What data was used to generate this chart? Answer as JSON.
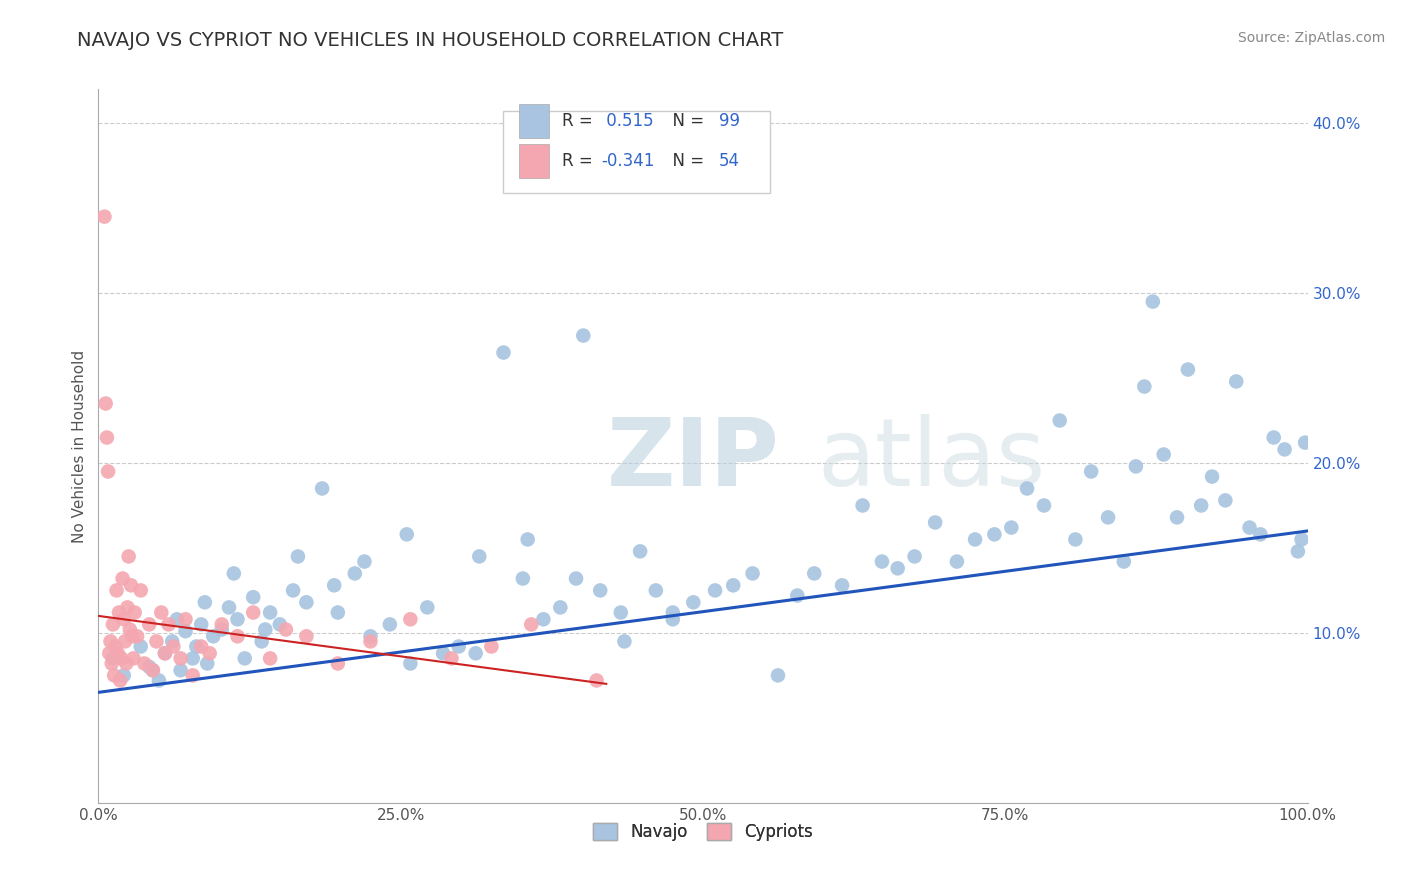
{
  "title": "NAVAJO VS CYPRIOT NO VEHICLES IN HOUSEHOLD CORRELATION CHART",
  "source_text": "Source: ZipAtlas.com",
  "ylabel": "No Vehicles in Household",
  "xlim": [
    0,
    100
  ],
  "ylim": [
    0,
    42
  ],
  "xticks": [
    0,
    25,
    50,
    75,
    100
  ],
  "xtick_labels": [
    "0.0%",
    "25.0%",
    "50.0%",
    "75.0%",
    "100.0%"
  ],
  "yticks": [
    0,
    10,
    20,
    30,
    40
  ],
  "ytick_labels": [
    "",
    "10.0%",
    "20.0%",
    "30.0%",
    "40.0%"
  ],
  "navajo_R": 0.515,
  "navajo_N": 99,
  "cypriot_R": -0.341,
  "cypriot_N": 54,
  "navajo_color": "#a8c4e0",
  "cypriot_color": "#f4a7b0",
  "navajo_line_color": "#2255bb",
  "cypriot_line_color": "#cc2222",
  "watermark_zip": "ZIP",
  "watermark_atlas": "atlas",
  "background_color": "#ffffff",
  "grid_color": "#cccccc",
  "navajo_x": [
    1.2,
    2.1,
    3.5,
    4.2,
    5.0,
    5.5,
    6.1,
    6.8,
    7.2,
    7.8,
    8.1,
    8.5,
    9.0,
    9.5,
    10.2,
    10.8,
    11.5,
    12.1,
    12.8,
    13.5,
    14.2,
    15.0,
    16.1,
    17.2,
    18.5,
    19.8,
    21.2,
    22.5,
    24.1,
    25.8,
    27.2,
    28.5,
    29.8,
    31.2,
    33.5,
    35.1,
    36.8,
    38.2,
    40.1,
    41.5,
    43.2,
    44.8,
    46.1,
    47.5,
    49.2,
    51.0,
    52.5,
    54.1,
    56.2,
    57.8,
    59.2,
    61.5,
    63.2,
    64.8,
    66.1,
    67.5,
    69.2,
    71.0,
    72.5,
    74.1,
    75.5,
    76.8,
    78.2,
    79.5,
    80.8,
    82.1,
    83.5,
    84.8,
    85.8,
    86.5,
    87.2,
    88.1,
    89.2,
    90.1,
    91.2,
    92.1,
    93.2,
    94.1,
    95.2,
    96.1,
    97.2,
    98.1,
    99.2,
    99.5,
    99.8,
    4.5,
    6.5,
    8.8,
    11.2,
    13.8,
    16.5,
    19.5,
    22.0,
    25.5,
    31.5,
    35.5,
    39.5,
    43.5,
    47.5
  ],
  "navajo_y": [
    8.5,
    7.5,
    9.2,
    8.0,
    7.2,
    8.8,
    9.5,
    7.8,
    10.1,
    8.5,
    9.2,
    10.5,
    8.2,
    9.8,
    10.2,
    11.5,
    10.8,
    8.5,
    12.1,
    9.5,
    11.2,
    10.5,
    12.5,
    11.8,
    18.5,
    11.2,
    13.5,
    9.8,
    10.5,
    8.2,
    11.5,
    8.8,
    9.2,
    8.8,
    26.5,
    13.2,
    10.8,
    11.5,
    27.5,
    12.5,
    11.2,
    14.8,
    12.5,
    11.2,
    11.8,
    12.5,
    12.8,
    13.5,
    7.5,
    12.2,
    13.5,
    12.8,
    17.5,
    14.2,
    13.8,
    14.5,
    16.5,
    14.2,
    15.5,
    15.8,
    16.2,
    18.5,
    17.5,
    22.5,
    15.5,
    19.5,
    16.8,
    14.2,
    19.8,
    24.5,
    29.5,
    20.5,
    16.8,
    25.5,
    17.5,
    19.2,
    17.8,
    24.8,
    16.2,
    15.8,
    21.5,
    20.8,
    14.8,
    15.5,
    21.2,
    7.8,
    10.8,
    11.8,
    13.5,
    10.2,
    14.5,
    12.8,
    14.2,
    15.8,
    14.5,
    15.5,
    13.2,
    9.5,
    10.8
  ],
  "cypriot_x": [
    0.5,
    0.6,
    0.7,
    0.8,
    0.9,
    1.0,
    1.1,
    1.2,
    1.3,
    1.4,
    1.5,
    1.6,
    1.7,
    1.8,
    1.9,
    2.0,
    2.1,
    2.2,
    2.3,
    2.4,
    2.5,
    2.6,
    2.7,
    2.8,
    2.9,
    3.0,
    3.2,
    3.5,
    3.8,
    4.2,
    4.5,
    4.8,
    5.2,
    5.5,
    5.8,
    6.2,
    6.8,
    7.2,
    7.8,
    8.5,
    9.2,
    10.2,
    11.5,
    12.8,
    14.2,
    15.5,
    17.2,
    19.8,
    22.5,
    25.8,
    29.2,
    32.5,
    35.8,
    41.2
  ],
  "cypriot_y": [
    34.5,
    23.5,
    21.5,
    19.5,
    8.8,
    9.5,
    8.2,
    10.5,
    7.5,
    9.2,
    12.5,
    8.8,
    11.2,
    7.2,
    8.5,
    13.2,
    10.8,
    9.5,
    8.2,
    11.5,
    14.5,
    10.2,
    12.8,
    9.8,
    8.5,
    11.2,
    9.8,
    12.5,
    8.2,
    10.5,
    7.8,
    9.5,
    11.2,
    8.8,
    10.5,
    9.2,
    8.5,
    10.8,
    7.5,
    9.2,
    8.8,
    10.5,
    9.8,
    11.2,
    8.5,
    10.2,
    9.8,
    8.2,
    9.5,
    10.8,
    8.5,
    9.2,
    10.5,
    7.2
  ],
  "navajo_trend_x": [
    0,
    100
  ],
  "navajo_trend_y": [
    6.5,
    16.0
  ],
  "cypriot_trend_x": [
    0,
    42
  ],
  "cypriot_trend_y": [
    11.0,
    7.0
  ]
}
